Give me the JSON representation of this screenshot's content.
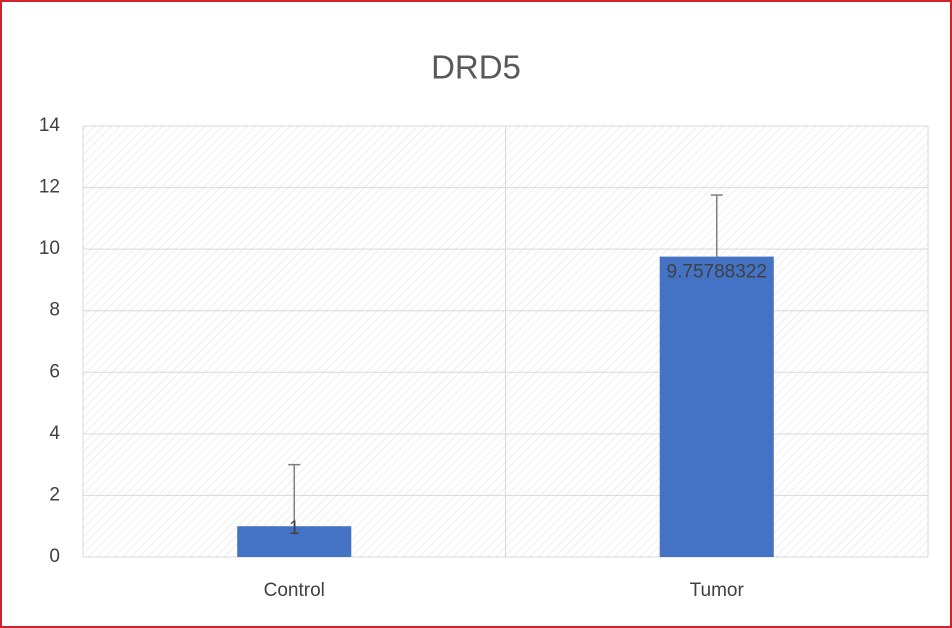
{
  "chart_data": {
    "type": "bar",
    "title": "DRD5",
    "categories": [
      "Control",
      "Tumor"
    ],
    "values": [
      1,
      9.75788322
    ],
    "errors": [
      2,
      2
    ],
    "color": "#4472c4",
    "ylim": [
      0,
      14
    ],
    "yticks": [
      0,
      2,
      4,
      6,
      8,
      10,
      12,
      14
    ],
    "grid": true
  }
}
